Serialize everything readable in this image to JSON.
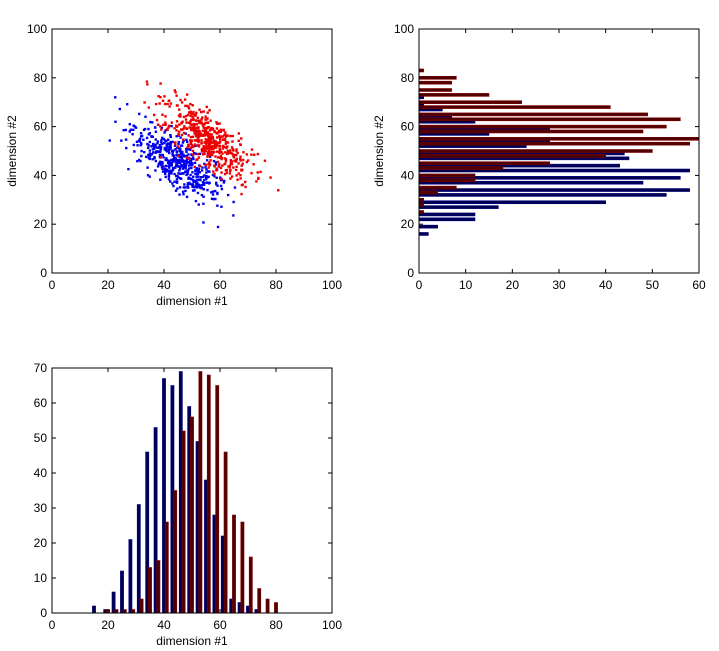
{
  "chart_data": [
    {
      "id": "scatter",
      "type": "scatter",
      "xlabel": "dimension #1",
      "ylabel": "dimension #2",
      "xlim": [
        0,
        100
      ],
      "ylim": [
        0,
        100
      ],
      "xticks": [
        0,
        20,
        40,
        60,
        80,
        100
      ],
      "yticks": [
        0,
        20,
        40,
        60,
        80,
        100
      ],
      "series": [
        {
          "color": "#0000ee",
          "center": [
            45,
            45
          ],
          "x_range": [
            15,
            80
          ],
          "y_range": [
            15,
            72
          ],
          "count": 500
        },
        {
          "color": "#ee0000",
          "center": [
            55,
            55
          ],
          "x_range": [
            24,
            82
          ],
          "y_range": [
            23,
            83
          ],
          "count": 500
        }
      ]
    },
    {
      "id": "hist-dim2",
      "type": "bar",
      "orientation": "horizontal",
      "xlabel": "",
      "ylabel": "dimension #2",
      "xlim": [
        0,
        60
      ],
      "ylim": [
        0,
        100
      ],
      "xticks": [
        0,
        10,
        20,
        30,
        40,
        50,
        60
      ],
      "yticks": [
        0,
        20,
        40,
        60,
        80,
        100
      ],
      "series": [
        {
          "color": "#000050",
          "edge": "#000080",
          "bins": [
            16,
            19,
            22,
            24,
            27,
            29,
            32,
            34,
            37,
            39,
            42,
            44,
            47,
            49,
            52,
            54,
            57,
            59,
            62,
            64,
            67,
            69,
            72
          ],
          "values": [
            2,
            4,
            12,
            12,
            17,
            40,
            53,
            58,
            48,
            56,
            58,
            43,
            45,
            44,
            23,
            28,
            15,
            28,
            12,
            7,
            5,
            1,
            1
          ]
        },
        {
          "color": "#500000",
          "edge": "#800000",
          "bins": [
            25,
            28,
            30,
            33,
            35,
            38,
            40,
            43,
            45,
            48,
            50,
            53,
            55,
            58,
            60,
            63,
            65,
            68,
            70,
            73,
            75,
            78,
            80,
            83
          ],
          "values": [
            1,
            1,
            1,
            4,
            8,
            12,
            12,
            18,
            28,
            40,
            50,
            58,
            60,
            48,
            53,
            56,
            49,
            41,
            22,
            15,
            7,
            7,
            8,
            1
          ]
        }
      ]
    },
    {
      "id": "hist-dim1",
      "type": "bar",
      "orientation": "vertical",
      "xlabel": "dimension #1",
      "ylabel": "",
      "xlim": [
        0,
        100
      ],
      "ylim": [
        0,
        70
      ],
      "xticks": [
        0,
        20,
        40,
        60,
        80,
        100
      ],
      "yticks": [
        0,
        10,
        20,
        30,
        40,
        50,
        60,
        70
      ],
      "series": [
        {
          "color": "#000050",
          "edge": "#000080",
          "bins": [
            15,
            19,
            22,
            25,
            28,
            31,
            34,
            37,
            40,
            43,
            46,
            49,
            52,
            55,
            58,
            61,
            64,
            67,
            70,
            73
          ],
          "values": [
            2,
            1,
            6,
            12,
            21,
            31,
            46,
            53,
            67,
            65,
            69,
            59,
            49,
            38,
            28,
            22,
            4,
            3,
            2,
            1
          ]
        },
        {
          "color": "#500000",
          "edge": "#800000",
          "bins": [
            20,
            23,
            26,
            29,
            32,
            35,
            38,
            41,
            44,
            47,
            50,
            53,
            56,
            59,
            62,
            65,
            68,
            71,
            74,
            77,
            80
          ],
          "values": [
            1,
            1,
            1,
            1,
            4,
            13,
            15,
            26,
            35,
            52,
            56,
            69,
            68,
            65,
            46,
            28,
            26,
            16,
            7,
            4,
            3
          ]
        }
      ]
    }
  ]
}
